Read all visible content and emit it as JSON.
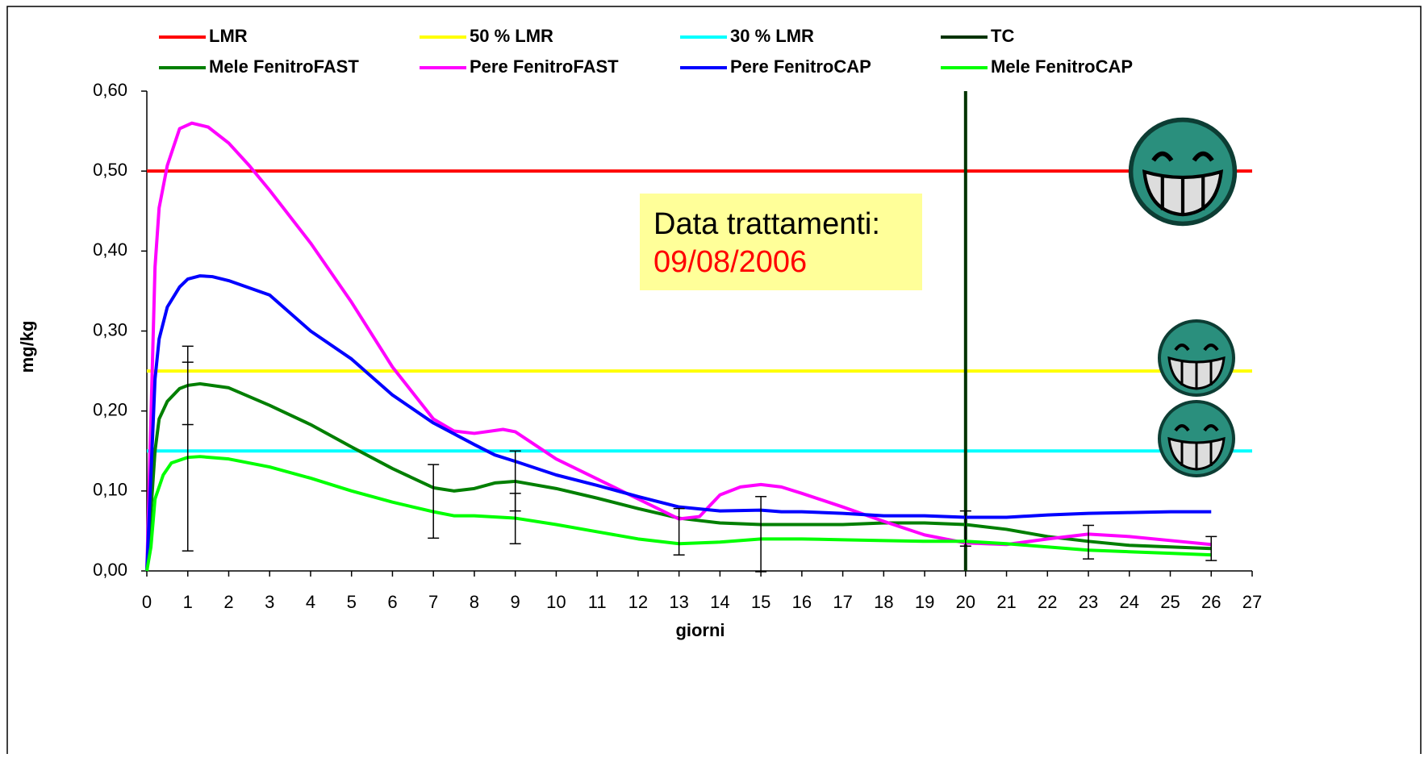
{
  "chart_data": {
    "type": "line",
    "x_label": "giorni",
    "y_label": "mg/kg",
    "xlim": [
      0,
      27
    ],
    "ylim": [
      0,
      0.6
    ],
    "xticks": [
      0,
      1,
      2,
      3,
      4,
      5,
      6,
      7,
      8,
      9,
      10,
      11,
      12,
      13,
      14,
      15,
      16,
      17,
      18,
      19,
      20,
      21,
      22,
      23,
      24,
      25,
      26,
      27
    ],
    "yticks": [
      {
        "value": 0,
        "label": "0,00"
      },
      {
        "value": 0.1,
        "label": "0,10"
      },
      {
        "value": 0.2,
        "label": "0,20"
      },
      {
        "value": 0.3,
        "label": "0,30"
      },
      {
        "value": 0.4,
        "label": "0,40"
      },
      {
        "value": 0.5,
        "label": "0,50"
      },
      {
        "value": 0.6,
        "label": "0,60"
      }
    ],
    "reference_lines": [
      {
        "name": "LMR",
        "color": "#ff0000",
        "orientation": "horizontal",
        "value": 0.5
      },
      {
        "name": "50 % LMR",
        "color": "#ffff00",
        "orientation": "horizontal",
        "value": 0.25
      },
      {
        "name": "30 % LMR",
        "color": "#00ffff",
        "orientation": "horizontal",
        "value": 0.15
      },
      {
        "name": "TC",
        "color": "#003300",
        "orientation": "vertical",
        "value": 20
      }
    ],
    "series": [
      {
        "name": "Mele FenitroFAST",
        "color": "#007f00",
        "x": [
          0,
          0.2,
          0.3,
          0.5,
          0.8,
          1,
          1.3,
          2,
          3,
          4,
          5,
          6,
          7,
          7.5,
          8,
          8.5,
          9,
          10,
          11,
          12,
          13,
          14,
          15,
          16,
          17,
          18,
          19,
          20,
          21,
          22,
          23,
          24,
          25,
          26
        ],
        "values": [
          0,
          0.15,
          0.19,
          0.212,
          0.228,
          0.232,
          0.234,
          0.229,
          0.207,
          0.183,
          0.155,
          0.128,
          0.104,
          0.1,
          0.103,
          0.11,
          0.112,
          0.103,
          0.091,
          0.078,
          0.066,
          0.06,
          0.058,
          0.058,
          0.058,
          0.06,
          0.06,
          0.058,
          0.052,
          0.043,
          0.037,
          0.032,
          0.03,
          0.028
        ]
      },
      {
        "name": "Pere FenitroFAST",
        "color": "#ff00ff",
        "x": [
          0,
          0.2,
          0.3,
          0.5,
          0.8,
          1.1,
          1.5,
          2,
          2.5,
          3,
          4,
          5,
          6,
          7,
          7.5,
          8,
          8.7,
          9,
          10,
          11,
          12,
          13,
          13.5,
          14,
          14.5,
          15,
          15.5,
          16,
          17,
          18,
          19,
          20,
          21,
          22,
          23,
          24,
          25,
          26
        ],
        "values": [
          0,
          0.38,
          0.454,
          0.507,
          0.553,
          0.56,
          0.555,
          0.535,
          0.507,
          0.476,
          0.41,
          0.336,
          0.255,
          0.19,
          0.175,
          0.172,
          0.177,
          0.174,
          0.14,
          0.115,
          0.09,
          0.065,
          0.068,
          0.095,
          0.105,
          0.108,
          0.105,
          0.097,
          0.08,
          0.062,
          0.045,
          0.035,
          0.033,
          0.04,
          0.046,
          0.043,
          0.038,
          0.033
        ]
      },
      {
        "name": "Pere FenitroCAP",
        "color": "#0000ff",
        "x": [
          0,
          0.2,
          0.3,
          0.5,
          0.8,
          1,
          1.3,
          1.6,
          2,
          3,
          4,
          5,
          6,
          7,
          8,
          8.5,
          9,
          10,
          11,
          12,
          13,
          14,
          15,
          15.5,
          16,
          17,
          18,
          19,
          20,
          21,
          22,
          23,
          24,
          25,
          26
        ],
        "values": [
          0,
          0.24,
          0.29,
          0.33,
          0.355,
          0.365,
          0.369,
          0.368,
          0.363,
          0.345,
          0.3,
          0.265,
          0.22,
          0.185,
          0.158,
          0.145,
          0.137,
          0.12,
          0.107,
          0.093,
          0.08,
          0.075,
          0.076,
          0.074,
          0.074,
          0.072,
          0.069,
          0.069,
          0.067,
          0.067,
          0.07,
          0.072,
          0.073,
          0.074,
          0.074
        ]
      },
      {
        "name": "Mele FenitroCAP",
        "color": "#00ff00",
        "x": [
          0,
          0.1,
          0.2,
          0.4,
          0.6,
          1,
          1.3,
          2,
          3,
          4,
          5,
          6,
          7,
          7.5,
          8,
          9,
          10,
          11,
          12,
          13,
          14,
          15,
          16,
          17,
          18,
          19,
          20,
          21,
          22,
          23,
          24,
          25,
          26
        ],
        "values": [
          0,
          0.03,
          0.09,
          0.12,
          0.135,
          0.142,
          0.143,
          0.14,
          0.13,
          0.116,
          0.1,
          0.086,
          0.074,
          0.069,
          0.069,
          0.066,
          0.058,
          0.049,
          0.04,
          0.034,
          0.036,
          0.04,
          0.04,
          0.039,
          0.038,
          0.037,
          0.037,
          0.034,
          0.03,
          0.026,
          0.024,
          0.022,
          0.02
        ]
      }
    ],
    "error_bars": {
      "x": [
        1,
        1,
        7,
        9,
        9,
        13,
        15,
        20,
        23,
        26
      ],
      "values": [
        0.153,
        0.222,
        0.087,
        0.092,
        0.086,
        0.049,
        0.046,
        0.053,
        0.036,
        0.028
      ],
      "errors": [
        0.128,
        0.039,
        0.046,
        0.058,
        0.011,
        0.029,
        0.047,
        0.022,
        0.021,
        0.015
      ]
    },
    "annotation": {
      "label": "Data trattamenti:",
      "date": "09/08/2006"
    }
  }
}
